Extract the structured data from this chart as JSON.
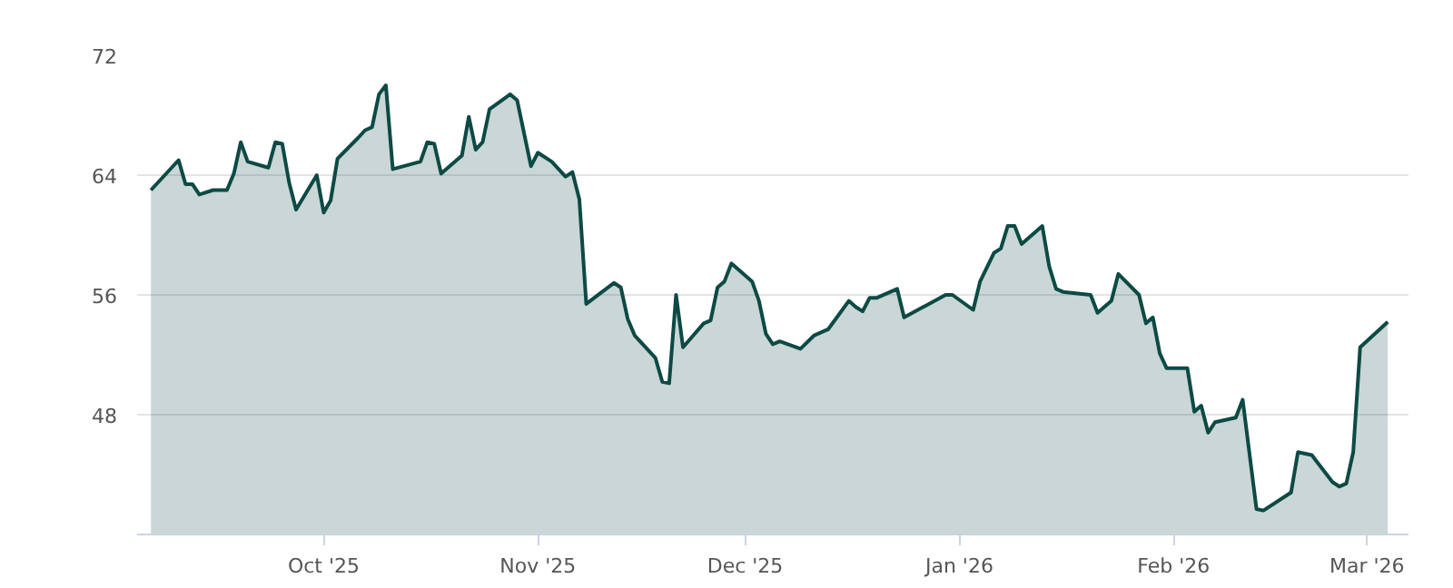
{
  "chart_data": {
    "type": "area",
    "x": [
      "2025-09-06",
      "2025-09-08",
      "2025-09-10",
      "2025-09-11",
      "2025-09-12",
      "2025-09-13",
      "2025-09-15",
      "2025-09-17",
      "2025-09-18",
      "2025-09-19",
      "2025-09-20",
      "2025-09-23",
      "2025-09-24",
      "2025-09-25",
      "2025-09-26",
      "2025-09-27",
      "2025-09-30",
      "2025-10-01",
      "2025-10-02",
      "2025-10-03",
      "2025-10-06",
      "2025-10-07",
      "2025-10-08",
      "2025-10-09",
      "2025-10-10",
      "2025-10-11",
      "2025-10-15",
      "2025-10-16",
      "2025-10-17",
      "2025-10-18",
      "2025-10-21",
      "2025-10-22",
      "2025-10-23",
      "2025-10-24",
      "2025-10-25",
      "2025-10-28",
      "2025-10-29",
      "2025-10-31",
      "2025-11-01",
      "2025-11-03",
      "2025-11-05",
      "2025-11-06",
      "2025-11-07",
      "2025-11-08",
      "2025-11-12",
      "2025-11-13",
      "2025-11-14",
      "2025-11-15",
      "2025-11-18",
      "2025-11-19",
      "2025-11-20",
      "2025-11-21",
      "2025-11-22",
      "2025-11-25",
      "2025-11-26",
      "2025-11-27",
      "2025-11-28",
      "2025-11-29",
      "2025-12-02",
      "2025-12-03",
      "2025-12-04",
      "2025-12-05",
      "2025-12-06",
      "2025-12-09",
      "2025-12-11",
      "2025-12-13",
      "2025-12-16",
      "2025-12-17",
      "2025-12-18",
      "2025-12-19",
      "2025-12-20",
      "2025-12-23",
      "2025-12-24",
      "2025-12-30",
      "2025-12-31",
      "2026-01-03",
      "2026-01-04",
      "2026-01-06",
      "2026-01-07",
      "2026-01-08",
      "2026-01-09",
      "2026-01-10",
      "2026-01-13",
      "2026-01-14",
      "2026-01-15",
      "2026-01-16",
      "2026-01-20",
      "2026-01-21",
      "2026-01-23",
      "2026-01-24",
      "2026-01-27",
      "2026-01-28",
      "2026-01-29",
      "2026-01-30",
      "2026-01-31",
      "2026-02-03",
      "2026-02-04",
      "2026-02-05",
      "2026-02-06",
      "2026-02-07",
      "2026-02-10",
      "2026-02-11",
      "2026-02-13",
      "2026-02-14",
      "2026-02-18",
      "2026-02-19",
      "2026-02-21",
      "2026-02-24",
      "2026-02-25",
      "2026-02-26",
      "2026-02-27",
      "2026-02-28",
      "2026-03-04"
    ],
    "series": [
      {
        "color": "#0d4a45",
        "values": [
          63.0,
          64.0,
          65.0,
          63.4,
          63.4,
          62.7,
          63.0,
          63.0,
          64.1,
          66.2,
          64.9,
          64.5,
          66.2,
          66.1,
          63.5,
          61.7,
          64.0,
          61.5,
          62.3,
          65.1,
          66.5,
          67.0,
          67.2,
          69.4,
          70.0,
          64.4,
          64.9,
          66.2,
          66.1,
          64.1,
          65.3,
          67.9,
          65.7,
          66.2,
          68.4,
          69.4,
          69.0,
          64.6,
          65.5,
          64.9,
          63.9,
          64.2,
          62.4,
          55.4,
          56.8,
          56.5,
          54.4,
          53.3,
          51.8,
          50.2,
          50.1,
          56.0,
          52.5,
          54.1,
          54.3,
          56.5,
          56.9,
          58.1,
          56.9,
          55.6,
          53.4,
          52.7,
          52.9,
          52.4,
          53.3,
          53.7,
          55.6,
          55.2,
          54.9,
          55.8,
          55.8,
          56.4,
          54.5,
          56.0,
          56.0,
          55.0,
          56.9,
          58.8,
          59.1,
          60.6,
          60.6,
          59.4,
          60.6,
          57.9,
          56.4,
          56.2,
          56.0,
          54.8,
          55.6,
          57.4,
          56.0,
          54.1,
          54.5,
          52.1,
          51.1,
          51.1,
          48.2,
          48.6,
          46.8,
          47.5,
          47.8,
          49.0,
          41.7,
          41.6,
          42.8,
          45.5,
          45.3,
          43.5,
          43.2,
          43.4,
          45.5,
          52.5,
          54.2
        ]
      }
    ],
    "xlim": [
      "2025-09-04",
      "2026-03-07"
    ],
    "xticks": [
      {
        "value": "2025-10-01",
        "label": "Oct '25"
      },
      {
        "value": "2025-11-01",
        "label": "Nov '25"
      },
      {
        "value": "2025-12-01",
        "label": "Dec '25"
      },
      {
        "value": "2026-01-01",
        "label": "Jan '26"
      },
      {
        "value": "2026-02-01",
        "label": "Feb '26"
      },
      {
        "value": "2026-03-01",
        "label": "Mar '26"
      }
    ],
    "ylim": [
      40,
      72
    ],
    "yticks": [
      48,
      56,
      64,
      72
    ],
    "grid": "y"
  }
}
